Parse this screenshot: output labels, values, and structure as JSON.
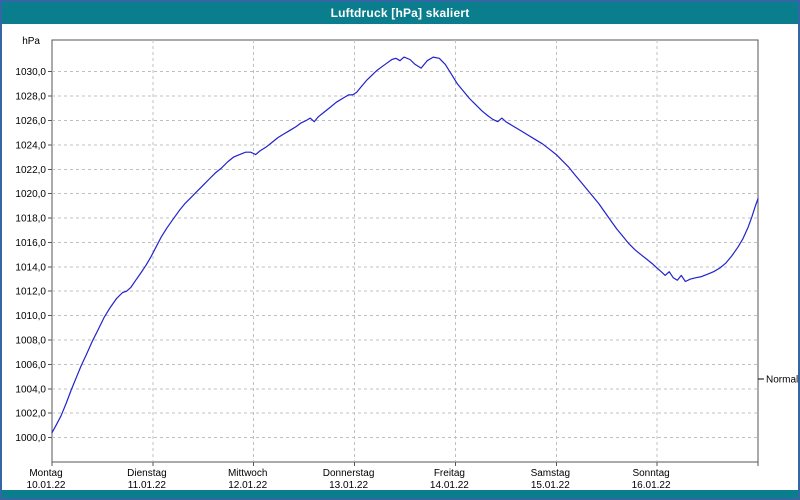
{
  "window": {
    "title": "Luftdruck [hPa] skaliert",
    "titlebar_color": "#0b7e8e",
    "border_color": "#3465a4"
  },
  "chart_data": {
    "type": "line",
    "title": "Luftdruck [hPa] skaliert",
    "unit_label": "hPa",
    "line_color": "#2222cc",
    "grid_color": "#c0c0c0",
    "axis_color": "#555555",
    "ylim": [
      998.0,
      1032.6
    ],
    "xlim_days": [
      0,
      7
    ],
    "grid": "dashed",
    "y_ticks": [
      {
        "value": 1000,
        "label": "1000,0"
      },
      {
        "value": 1002,
        "label": "1002,0"
      },
      {
        "value": 1004,
        "label": "1004,0"
      },
      {
        "value": 1006,
        "label": "1006,0"
      },
      {
        "value": 1008,
        "label": "1008,0"
      },
      {
        "value": 1010,
        "label": "1010,0"
      },
      {
        "value": 1012,
        "label": "1012,0"
      },
      {
        "value": 1014,
        "label": "1014,0"
      },
      {
        "value": 1016,
        "label": "1016,0"
      },
      {
        "value": 1018,
        "label": "1018,0"
      },
      {
        "value": 1020,
        "label": "1020,0"
      },
      {
        "value": 1022,
        "label": "1022,0"
      },
      {
        "value": 1024,
        "label": "1024,0"
      },
      {
        "value": 1026,
        "label": "1026,0"
      },
      {
        "value": 1028,
        "label": "1028,0"
      },
      {
        "value": 1030,
        "label": "1030,0"
      }
    ],
    "x_days": [
      {
        "name": "Montag",
        "date": "10.01.22"
      },
      {
        "name": "Dienstag",
        "date": "11.01.22"
      },
      {
        "name": "Mittwoch",
        "date": "12.01.22"
      },
      {
        "name": "Donnerstag",
        "date": "13.01.22"
      },
      {
        "name": "Freitag",
        "date": "14.01.22"
      },
      {
        "name": "Samstag",
        "date": "15.01.22"
      },
      {
        "name": "Sonntag",
        "date": "16.01.22"
      }
    ],
    "normal_marker": {
      "label": "Normal",
      "value": 1004.8
    },
    "series_name": "Luftdruck",
    "points": [
      [
        0.0,
        1000.4
      ],
      [
        0.04,
        1001.0
      ],
      [
        0.09,
        1001.8
      ],
      [
        0.14,
        1002.8
      ],
      [
        0.19,
        1003.9
      ],
      [
        0.24,
        1004.9
      ],
      [
        0.29,
        1005.9
      ],
      [
        0.34,
        1006.8
      ],
      [
        0.4,
        1007.9
      ],
      [
        0.46,
        1008.9
      ],
      [
        0.52,
        1009.9
      ],
      [
        0.58,
        1010.7
      ],
      [
        0.64,
        1011.4
      ],
      [
        0.7,
        1011.9
      ],
      [
        0.74,
        1012.0
      ],
      [
        0.78,
        1012.3
      ],
      [
        0.83,
        1012.9
      ],
      [
        0.88,
        1013.5
      ],
      [
        0.93,
        1014.1
      ],
      [
        0.98,
        1014.8
      ],
      [
        1.03,
        1015.6
      ],
      [
        1.08,
        1016.4
      ],
      [
        1.14,
        1017.2
      ],
      [
        1.2,
        1017.9
      ],
      [
        1.26,
        1018.6
      ],
      [
        1.32,
        1019.2
      ],
      [
        1.38,
        1019.7
      ],
      [
        1.44,
        1020.2
      ],
      [
        1.5,
        1020.7
      ],
      [
        1.56,
        1021.2
      ],
      [
        1.62,
        1021.7
      ],
      [
        1.68,
        1022.1
      ],
      [
        1.74,
        1022.6
      ],
      [
        1.8,
        1023.0
      ],
      [
        1.86,
        1023.2
      ],
      [
        1.92,
        1023.4
      ],
      [
        1.97,
        1023.4
      ],
      [
        2.02,
        1023.2
      ],
      [
        2.06,
        1023.5
      ],
      [
        2.12,
        1023.8
      ],
      [
        2.18,
        1024.2
      ],
      [
        2.24,
        1024.6
      ],
      [
        2.3,
        1024.9
      ],
      [
        2.36,
        1025.2
      ],
      [
        2.42,
        1025.5
      ],
      [
        2.47,
        1025.8
      ],
      [
        2.52,
        1026.0
      ],
      [
        2.56,
        1026.2
      ],
      [
        2.6,
        1025.9
      ],
      [
        2.64,
        1026.3
      ],
      [
        2.7,
        1026.7
      ],
      [
        2.76,
        1027.1
      ],
      [
        2.82,
        1027.5
      ],
      [
        2.88,
        1027.8
      ],
      [
        2.94,
        1028.1
      ],
      [
        2.98,
        1028.1
      ],
      [
        3.02,
        1028.3
      ],
      [
        3.07,
        1028.8
      ],
      [
        3.12,
        1029.3
      ],
      [
        3.17,
        1029.7
      ],
      [
        3.22,
        1030.1
      ],
      [
        3.27,
        1030.4
      ],
      [
        3.32,
        1030.7
      ],
      [
        3.37,
        1031.0
      ],
      [
        3.41,
        1031.1
      ],
      [
        3.45,
        1030.9
      ],
      [
        3.49,
        1031.2
      ],
      [
        3.55,
        1031.0
      ],
      [
        3.6,
        1030.6
      ],
      [
        3.66,
        1030.3
      ],
      [
        3.72,
        1030.9
      ],
      [
        3.78,
        1031.2
      ],
      [
        3.84,
        1031.1
      ],
      [
        3.9,
        1030.6
      ],
      [
        3.96,
        1029.8
      ],
      [
        4.02,
        1029.0
      ],
      [
        4.08,
        1028.4
      ],
      [
        4.14,
        1027.8
      ],
      [
        4.2,
        1027.3
      ],
      [
        4.26,
        1026.8
      ],
      [
        4.32,
        1026.4
      ],
      [
        4.37,
        1026.1
      ],
      [
        4.42,
        1025.9
      ],
      [
        4.46,
        1026.2
      ],
      [
        4.5,
        1025.9
      ],
      [
        4.56,
        1025.6
      ],
      [
        4.62,
        1025.3
      ],
      [
        4.7,
        1024.9
      ],
      [
        4.78,
        1024.5
      ],
      [
        4.86,
        1024.1
      ],
      [
        4.94,
        1023.6
      ],
      [
        5.0,
        1023.2
      ],
      [
        5.06,
        1022.7
      ],
      [
        5.12,
        1022.2
      ],
      [
        5.18,
        1021.6
      ],
      [
        5.24,
        1021.0
      ],
      [
        5.3,
        1020.4
      ],
      [
        5.36,
        1019.8
      ],
      [
        5.42,
        1019.2
      ],
      [
        5.48,
        1018.5
      ],
      [
        5.54,
        1017.8
      ],
      [
        5.6,
        1017.1
      ],
      [
        5.66,
        1016.5
      ],
      [
        5.72,
        1015.9
      ],
      [
        5.78,
        1015.4
      ],
      [
        5.84,
        1015.0
      ],
      [
        5.9,
        1014.6
      ],
      [
        5.96,
        1014.2
      ],
      [
        6.0,
        1013.9
      ],
      [
        6.04,
        1013.6
      ],
      [
        6.08,
        1013.3
      ],
      [
        6.12,
        1013.6
      ],
      [
        6.16,
        1013.1
      ],
      [
        6.2,
        1012.9
      ],
      [
        6.24,
        1013.3
      ],
      [
        6.28,
        1012.8
      ],
      [
        6.33,
        1013.0
      ],
      [
        6.38,
        1013.1
      ],
      [
        6.44,
        1013.2
      ],
      [
        6.5,
        1013.4
      ],
      [
        6.56,
        1013.6
      ],
      [
        6.62,
        1013.9
      ],
      [
        6.68,
        1014.3
      ],
      [
        6.74,
        1014.9
      ],
      [
        6.8,
        1015.6
      ],
      [
        6.85,
        1016.3
      ],
      [
        6.9,
        1017.2
      ],
      [
        6.94,
        1018.1
      ],
      [
        6.97,
        1018.9
      ],
      [
        7.0,
        1019.6
      ]
    ]
  }
}
